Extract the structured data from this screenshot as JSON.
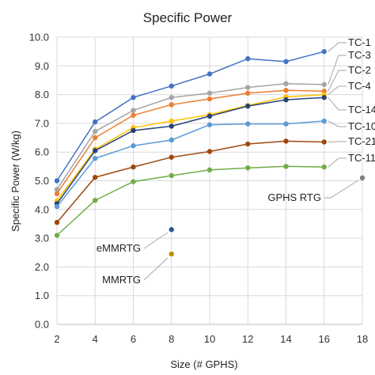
{
  "chart_data": {
    "type": "line",
    "title": "Specific Power",
    "xlabel": "Size (# GPHS)",
    "ylabel": "Specific Power (W/kg)",
    "xlim": [
      2,
      18
    ],
    "ylim": [
      0,
      10
    ],
    "x_ticks": [
      "2",
      "4",
      "6",
      "8",
      "10",
      "12",
      "14",
      "16",
      "18"
    ],
    "y_ticks": [
      "0.0",
      "1.0",
      "2.0",
      "3.0",
      "4.0",
      "5.0",
      "6.0",
      "7.0",
      "8.0",
      "9.0",
      "10.0"
    ],
    "grid": true,
    "series": [
      {
        "name": "TC-1",
        "color": "#4472c4",
        "x": [
          2,
          4,
          6,
          8,
          10,
          12,
          14,
          16
        ],
        "y": [
          5.0,
          7.05,
          7.9,
          8.3,
          8.72,
          9.25,
          9.15,
          9.5
        ]
      },
      {
        "name": "TC-3",
        "color": "#a5a5a5",
        "x": [
          2,
          4,
          6,
          8,
          10,
          12,
          14,
          16
        ],
        "y": [
          4.7,
          6.72,
          7.45,
          7.9,
          8.05,
          8.25,
          8.38,
          8.35
        ]
      },
      {
        "name": "TC-2",
        "color": "#ed7d31",
        "x": [
          2,
          4,
          6,
          8,
          10,
          12,
          14,
          16
        ],
        "y": [
          4.55,
          6.5,
          7.28,
          7.65,
          7.85,
          8.05,
          8.15,
          8.12
        ]
      },
      {
        "name": "TC-4",
        "color": "#ffc000",
        "x": [
          2,
          4,
          6,
          8,
          10,
          12,
          14,
          16
        ],
        "y": [
          4.3,
          6.1,
          6.85,
          7.08,
          7.3,
          7.62,
          7.92,
          8.0
        ]
      },
      {
        "name": "TC-14",
        "color": "#264478",
        "x": [
          2,
          4,
          6,
          8,
          10,
          12,
          14,
          16
        ],
        "y": [
          4.2,
          6.05,
          6.75,
          6.9,
          7.25,
          7.6,
          7.82,
          7.9
        ]
      },
      {
        "name": "TC-10",
        "color": "#5b9bd5",
        "x": [
          2,
          4,
          6,
          8,
          10,
          12,
          14,
          16
        ],
        "y": [
          4.1,
          5.78,
          6.22,
          6.42,
          6.95,
          6.98,
          6.98,
          7.08
        ]
      },
      {
        "name": "TC-21",
        "color": "#9e480e",
        "x": [
          2,
          4,
          6,
          8,
          10,
          12,
          14,
          16
        ],
        "y": [
          3.55,
          5.12,
          5.48,
          5.82,
          6.02,
          6.28,
          6.38,
          6.35
        ]
      },
      {
        "name": "TC-11",
        "color": "#70ad47",
        "x": [
          2,
          4,
          6,
          8,
          10,
          12,
          14,
          16
        ],
        "y": [
          3.1,
          4.32,
          4.97,
          5.18,
          5.38,
          5.45,
          5.5,
          5.48
        ]
      }
    ],
    "points": [
      {
        "name": "GPHS RTG",
        "color": "#7f7f7f",
        "x": 18,
        "y": 5.1
      },
      {
        "name": "eMMRTG",
        "color": "#2f5597",
        "x": 8,
        "y": 3.3
      },
      {
        "name": "MMRTG",
        "color": "#bf9000",
        "x": 8,
        "y": 2.45
      }
    ]
  }
}
